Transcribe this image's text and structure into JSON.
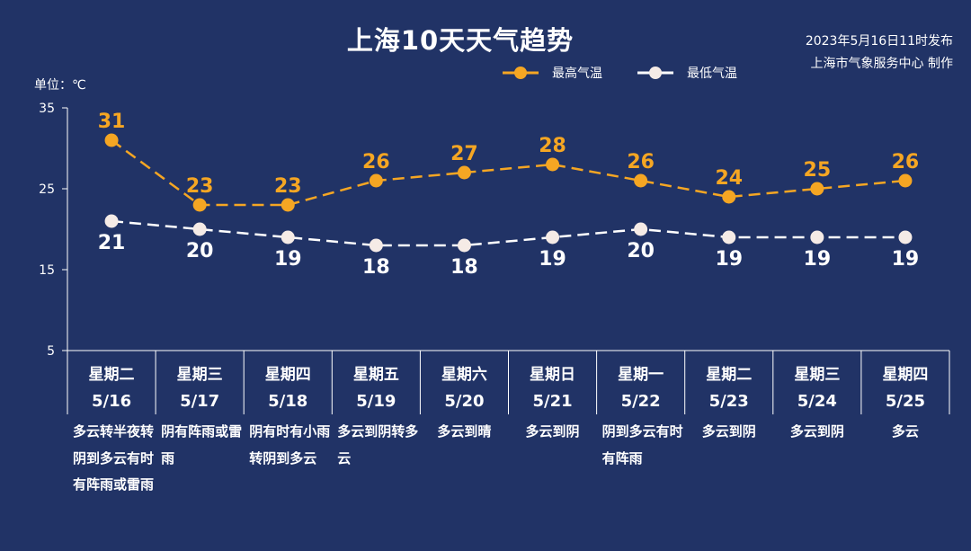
{
  "title": "上海10天天气趋势",
  "publish": {
    "date_text": "2023年5月16日11时发布",
    "publisher_text": "上海市气象服务中心 制作"
  },
  "unit_label": "单位：℃",
  "colors": {
    "background": "#213366",
    "high_series": "#f5a623",
    "low_series": "#ffffff",
    "low_marker": "#f5ebe6",
    "axis": "#ffffff"
  },
  "chart_data": {
    "type": "line",
    "title": "上海10天天气趋势",
    "ylabel": "单位：℃",
    "ylim": [
      5,
      35
    ],
    "yticks": [
      5,
      15,
      25,
      35
    ],
    "grid": false,
    "legend_position": "top-right",
    "days": [
      {
        "weekday": "星期二",
        "date": "5/16",
        "weather": "多云转半夜转阴到多云有时有阵雨或雷雨",
        "align": "left"
      },
      {
        "weekday": "星期三",
        "date": "5/17",
        "weather": "阴有阵雨或雷雨",
        "align": "left"
      },
      {
        "weekday": "星期四",
        "date": "5/18",
        "weather": "阴有时有小雨转阴到多云",
        "align": "left"
      },
      {
        "weekday": "星期五",
        "date": "5/19",
        "weather": "多云到阴转多云",
        "align": "left"
      },
      {
        "weekday": "星期六",
        "date": "5/20",
        "weather": "多云到晴",
        "align": "center"
      },
      {
        "weekday": "星期日",
        "date": "5/21",
        "weather": "多云到阴",
        "align": "center"
      },
      {
        "weekday": "星期一",
        "date": "5/22",
        "weather": "阴到多云有时有阵雨",
        "align": "left"
      },
      {
        "weekday": "星期二",
        "date": "5/23",
        "weather": "多云到阴",
        "align": "center"
      },
      {
        "weekday": "星期三",
        "date": "5/24",
        "weather": "多云到阴",
        "align": "center"
      },
      {
        "weekday": "星期四",
        "date": "5/25",
        "weather": "多云",
        "align": "center"
      }
    ],
    "series": [
      {
        "name": "最高气温",
        "key": "high",
        "values": [
          31,
          23,
          23,
          26,
          27,
          28,
          26,
          24,
          25,
          26
        ]
      },
      {
        "name": "最低气温",
        "key": "low",
        "values": [
          21,
          20,
          19,
          18,
          18,
          19,
          20,
          19,
          19,
          19
        ]
      }
    ]
  }
}
